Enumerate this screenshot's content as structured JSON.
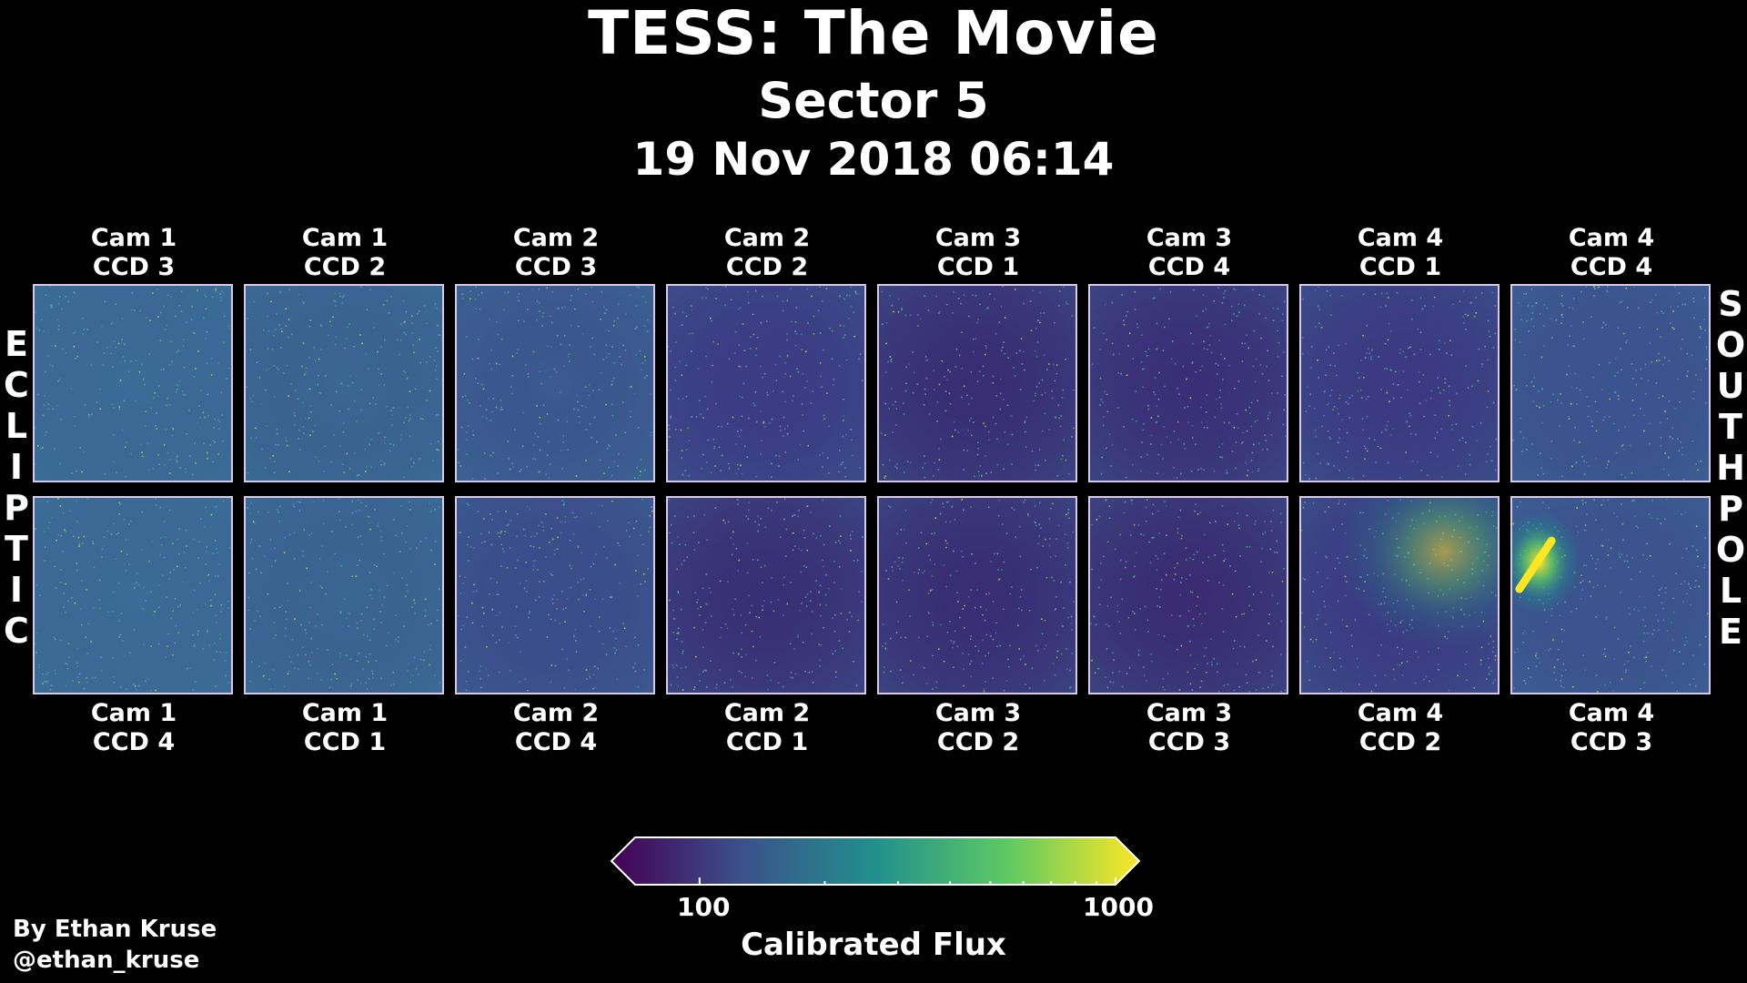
{
  "header": {
    "title": "TESS: The Movie",
    "subtitle": "Sector 5",
    "timestamp": "19 Nov 2018 06:14"
  },
  "top_row": [
    {
      "label": "Cam 1\nCCD 3",
      "hint": "#3b6d97"
    },
    {
      "label": "Cam 1\nCCD 2",
      "hint": "#3a6893"
    },
    {
      "label": "Cam 2\nCCD 3",
      "hint": "#3b5b90"
    },
    {
      "label": "Cam 2\nCCD 2",
      "hint": "#3b3c84"
    },
    {
      "label": "Cam 3\nCCD 1",
      "hint": "#392d74"
    },
    {
      "label": "Cam 3\nCCD 4",
      "hint": "#3a2f77"
    },
    {
      "label": "Cam 4\nCCD 1",
      "hint": "#3b3a82"
    },
    {
      "label": "Cam 4\nCCD 4",
      "hint": "#3b5590"
    }
  ],
  "bottom_row": [
    {
      "label": "Cam 1\nCCD 4",
      "hint": "#3b6d97"
    },
    {
      "label": "Cam 1\nCCD 1",
      "hint": "#3a6893"
    },
    {
      "label": "Cam 2\nCCD 4",
      "hint": "#3b4e8c"
    },
    {
      "label": "Cam 2\nCCD 1",
      "hint": "#392f76"
    },
    {
      "label": "Cam 3\nCCD 2",
      "hint": "#392d74"
    },
    {
      "label": "Cam 3\nCCD 3",
      "hint": "#3a2c72"
    },
    {
      "label": "Cam 4\nCCD 2",
      "hint": "#3b3a82"
    },
    {
      "label": "Cam 4\nCCD 3",
      "hint": "#3b5590"
    }
  ],
  "side_labels": {
    "left": [
      "E",
      "C",
      "L",
      "I",
      "P",
      "T",
      "I",
      "C"
    ],
    "right": [
      "S",
      "O",
      "U",
      "T",
      "H",
      "P",
      "O",
      "L",
      "E"
    ]
  },
  "colorbar": {
    "title": "Calibrated Flux",
    "tick_labels": [
      "100",
      "1000"
    ],
    "scale": "log",
    "colormap": "viridis",
    "colors": [
      "#440154",
      "#3b528b",
      "#21908d",
      "#5dc963",
      "#fde725"
    ]
  },
  "credit": {
    "line1": "By Ethan Kruse",
    "line2": "@ethan_kruse"
  }
}
